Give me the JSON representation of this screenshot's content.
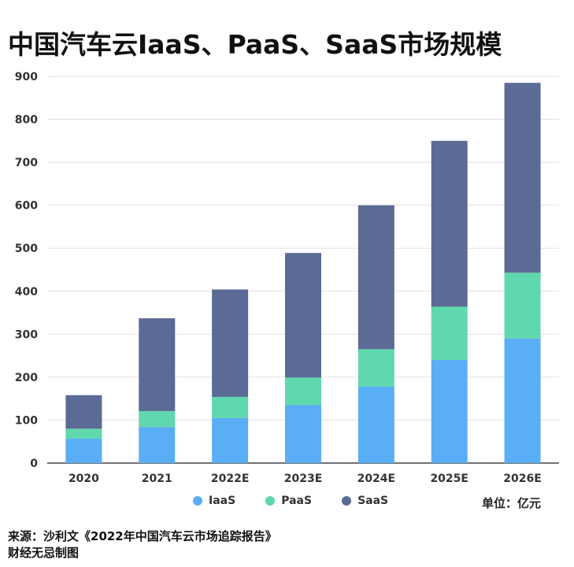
{
  "title": "中国汽车云IaaS、PaaS、SaaS市场规模",
  "unit_label": "单位：亿元",
  "source_line1": "来源：沙利文《2022年中国汽车云市场追踪报告》",
  "source_line2": "财经无忌制图",
  "chart_data": {
    "type": "bar",
    "stacked": true,
    "categories": [
      "2020",
      "2021",
      "2022E",
      "2023E",
      "2024E",
      "2025E",
      "2026E"
    ],
    "series": [
      {
        "name": "IaaS",
        "color": "#5aaef5",
        "values": [
          57,
          84,
          105,
          135,
          178,
          240,
          290
        ]
      },
      {
        "name": "PaaS",
        "color": "#5fd8ad",
        "values": [
          23,
          37,
          49,
          64,
          87,
          124,
          153
        ]
      },
      {
        "name": "SaaS",
        "color": "#5b6b96",
        "values": [
          78,
          216,
          250,
          290,
          335,
          386,
          442
        ]
      }
    ],
    "ylim": [
      0,
      900
    ],
    "yticks": [
      0,
      100,
      200,
      300,
      400,
      500,
      600,
      700,
      800,
      900
    ],
    "grid": true,
    "legend_position": "bottom"
  }
}
